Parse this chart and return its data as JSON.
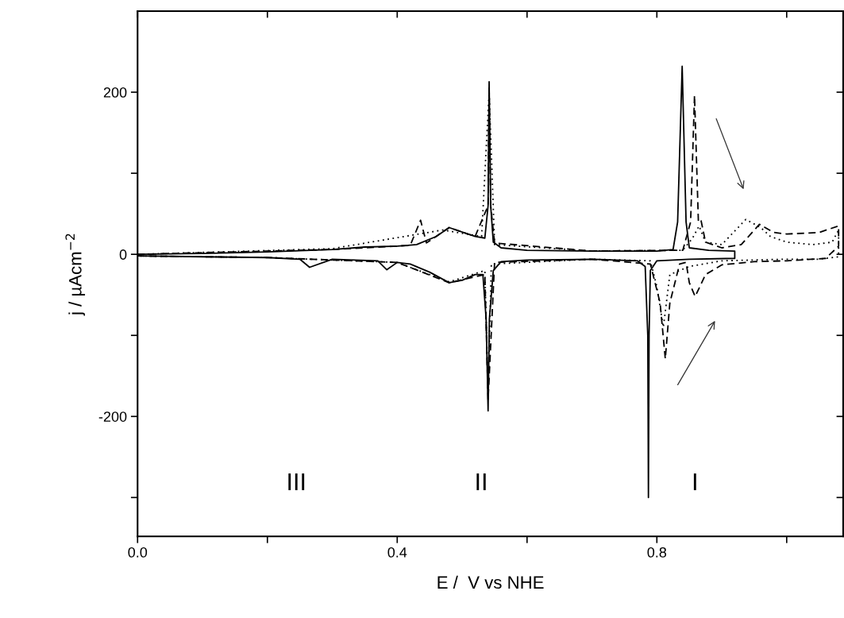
{
  "chart_data": {
    "type": "line",
    "xlabel": "E /  V vs NHE",
    "ylabel": "j / µAcm$^{−2}$",
    "xlim": [
      0,
      1.087
    ],
    "ylim": [
      -348,
      300
    ],
    "xticks": [
      {
        "value": 0.0,
        "label": "0.0"
      },
      {
        "value": 0.2,
        "label": null
      },
      0.4,
      {
        "value": 0.6,
        "label": null
      },
      0.8,
      {
        "value": 1.0,
        "label": null
      }
    ],
    "yticks": [
      {
        "value": -300,
        "label": null
      },
      -200,
      {
        "value": -100,
        "label": null
      },
      0,
      {
        "value": 100,
        "label": null
      },
      200
    ],
    "grid": false,
    "marker": "none",
    "series": [
      {
        "color": "#000000",
        "line_style": "solid",
        "x": [
          0.0,
          0.1,
          0.2,
          0.3,
          0.35,
          0.4,
          0.43,
          0.46,
          0.48,
          0.52,
          0.535,
          0.54,
          0.5416,
          0.544,
          0.548,
          0.56,
          0.6,
          0.7,
          0.8,
          0.825,
          0.832,
          0.839,
          0.845,
          0.85,
          0.88,
          0.92,
          0.92,
          0.85,
          0.8,
          0.79,
          0.788,
          0.787,
          0.786,
          0.782,
          0.77,
          0.7,
          0.6,
          0.56,
          0.548,
          0.542,
          0.54,
          0.537,
          0.532,
          0.52,
          0.5,
          0.48,
          0.45,
          0.42,
          0.4,
          0.384,
          0.37,
          0.3,
          0.265,
          0.25,
          0.2,
          0.1,
          0.0
        ],
        "values": [
          0,
          1,
          3,
          6,
          9,
          10,
          12,
          22,
          33,
          22,
          20,
          60,
          213,
          60,
          15,
          8,
          5,
          4,
          4,
          6,
          40,
          232,
          40,
          8,
          5,
          4,
          -5,
          -6,
          -8,
          -20,
          -100,
          -300,
          -100,
          -15,
          -8,
          -6,
          -7,
          -9,
          -20,
          -80,
          -193,
          -80,
          -25,
          -25,
          -32,
          -35,
          -22,
          -12,
          -10,
          -19,
          -8,
          -6,
          -16,
          -6,
          -4,
          -3,
          -2
        ]
      },
      {
        "color": "#000000",
        "line_style": "dashed",
        "x": [
          0.0,
          0.3,
          0.42,
          0.436,
          0.445,
          0.48,
          0.52,
          0.54,
          0.5416,
          0.544,
          0.55,
          0.7,
          0.84,
          0.852,
          0.858,
          0.864,
          0.868,
          0.875,
          0.9,
          0.93,
          0.958,
          0.98,
          1.0,
          1.05,
          1.08,
          1.08,
          1.06,
          1.0,
          0.95,
          0.9,
          0.875,
          0.859,
          0.85,
          0.845,
          0.835,
          0.82,
          0.813,
          0.805,
          0.79,
          0.7,
          0.55,
          0.54,
          0.535,
          0.48,
          0.4,
          0.2,
          0.0
        ],
        "values": [
          0,
          6,
          11,
          42,
          14,
          33,
          22,
          60,
          205,
          60,
          14,
          4,
          5,
          40,
          196,
          40,
          42,
          15,
          8,
          12,
          37,
          27,
          25,
          27,
          35,
          10,
          -5,
          -8,
          -9,
          -13,
          -25,
          -52,
          -35,
          -10,
          -12,
          -60,
          -129,
          -60,
          -12,
          -6,
          -10,
          -180,
          -25,
          -35,
          -10,
          -4,
          -2
        ]
      },
      {
        "color": "#000000",
        "line_style": "dotted",
        "x": [
          0.0,
          0.3,
          0.47,
          0.53,
          0.5416,
          0.55,
          0.7,
          0.84,
          0.855,
          0.865,
          0.875,
          0.9,
          0.937,
          0.96,
          0.975,
          1.0,
          1.04,
          1.07,
          1.08,
          1.08,
          1.05,
          1.0,
          0.9,
          0.85,
          0.82,
          0.81,
          0.8,
          0.79,
          0.7,
          0.545,
          0.54,
          0.535,
          0.48,
          0.4,
          0.2,
          0.0
        ],
        "values": [
          0,
          7,
          30,
          22,
          200,
          12,
          4,
          5,
          20,
          35,
          15,
          12,
          43,
          33,
          22,
          15,
          12,
          15,
          30,
          -3,
          -6,
          -6,
          -8,
          -15,
          -25,
          -90,
          -40,
          -8,
          -6,
          -12,
          -170,
          -20,
          -34,
          -10,
          -4,
          -2
        ]
      }
    ],
    "annotations": [
      "III",
      "II",
      "I"
    ]
  }
}
